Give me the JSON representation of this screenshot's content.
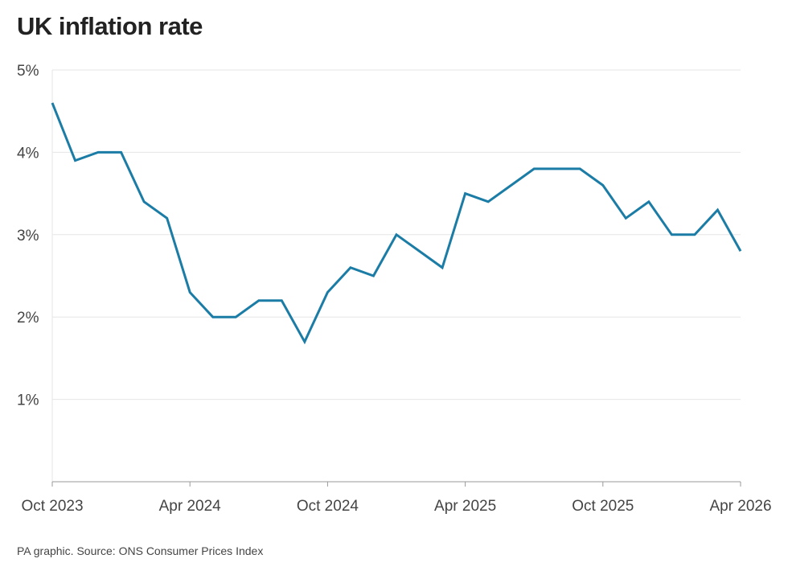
{
  "title": "UK inflation rate",
  "source": "PA graphic. Source: ONS Consumer Prices Index",
  "colors": {
    "line": "#1b7ca6",
    "grid": "#e6e6e6",
    "axis": "#999999"
  },
  "chart_data": {
    "type": "line",
    "title": "UK inflation rate",
    "xlabel": "",
    "ylabel": "",
    "ylim": [
      0,
      5
    ],
    "y_ticks": [
      1,
      2,
      3,
      4,
      5
    ],
    "y_tick_labels": [
      "1%",
      "2%",
      "3%",
      "4%",
      "5%"
    ],
    "x_tick_labels": [
      "Oct 2023",
      "Apr 2024",
      "Oct 2024",
      "Apr 2025",
      "Oct 2025",
      "Apr 2026"
    ],
    "x_tick_months": [
      "2023-10",
      "2024-04",
      "2024-10",
      "2025-04",
      "2025-10",
      "2026-04"
    ],
    "grid": true,
    "legend": "none",
    "series": [
      {
        "x": [
          "2023-10",
          "2023-11",
          "2023-12",
          "2024-01",
          "2024-02",
          "2024-03",
          "2024-04",
          "2024-05",
          "2024-06",
          "2024-07",
          "2024-08",
          "2024-09",
          "2024-10",
          "2024-11",
          "2024-12",
          "2025-01",
          "2025-02",
          "2025-03",
          "2025-04",
          "2025-05",
          "2025-06",
          "2025-07",
          "2025-08",
          "2025-09",
          "2025-10",
          "2025-11",
          "2025-12",
          "2026-01",
          "2026-02",
          "2026-03",
          "2026-04"
        ],
        "values": [
          4.6,
          3.9,
          4.0,
          4.0,
          3.4,
          3.2,
          2.3,
          2.0,
          2.0,
          2.2,
          2.2,
          1.7,
          2.3,
          2.6,
          2.5,
          3.0,
          2.8,
          2.6,
          3.5,
          3.4,
          3.6,
          3.8,
          3.8,
          3.8,
          3.6,
          3.2,
          3.4,
          3.0,
          3.0,
          3.3,
          2.8
        ]
      }
    ]
  }
}
